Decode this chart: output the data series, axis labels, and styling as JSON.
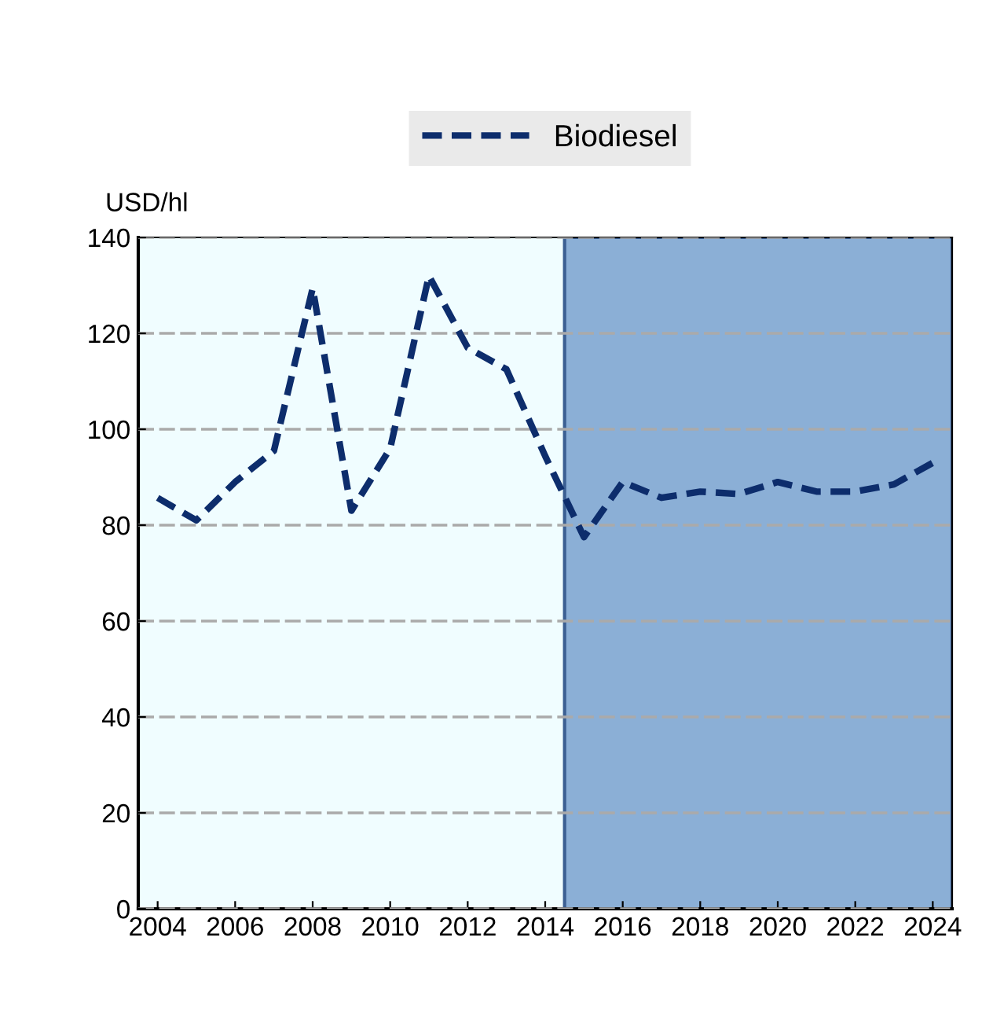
{
  "chart_data": {
    "type": "line",
    "ylabel": "USD/hl",
    "x": [
      2004,
      2005,
      2006,
      2007,
      2008,
      2009,
      2010,
      2011,
      2012,
      2013,
      2014,
      2015,
      2016,
      2017,
      2018,
      2019,
      2020,
      2021,
      2022,
      2023,
      2024
    ],
    "series": [
      {
        "name": "Biodiesel",
        "color": "#0d2d6c",
        "line_style": "dashed",
        "values": [
          85.7,
          81,
          89,
          95.5,
          129.4,
          83,
          96,
          132,
          117,
          112.5,
          94.4,
          77.5,
          89,
          85.7,
          87,
          86.5,
          89,
          87,
          87,
          88.5,
          93
        ]
      }
    ],
    "xlim": [
      2003.5,
      2024.5
    ],
    "xticks": [
      2004,
      2006,
      2008,
      2010,
      2012,
      2014,
      2016,
      2018,
      2020,
      2022,
      2024
    ],
    "ylim": [
      0,
      140
    ],
    "yticks": [
      0,
      20,
      40,
      60,
      80,
      100,
      120,
      140
    ],
    "bands": [
      {
        "axis": "x",
        "from": 2014.5,
        "to": 2024.5,
        "color": "#8bafd6"
      }
    ],
    "grid": "y",
    "legend": "top"
  }
}
